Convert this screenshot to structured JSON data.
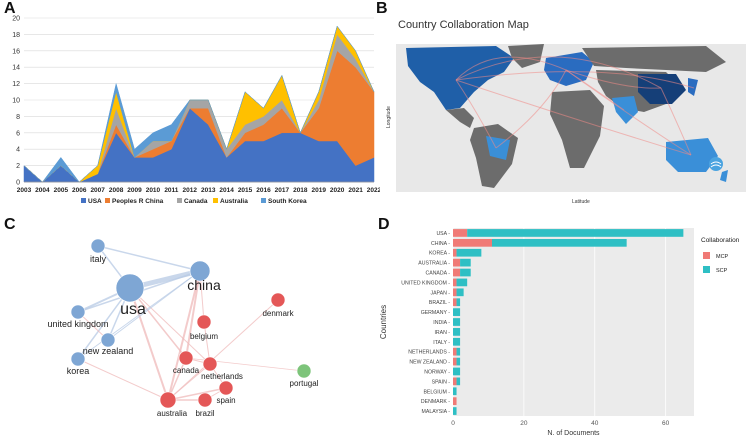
{
  "panels": {
    "a": "A",
    "b": "B",
    "c": "C",
    "d": "D"
  },
  "chart_data": [
    {
      "type": "area",
      "stacked": true,
      "panel": "A",
      "title": "",
      "xlabel": "",
      "ylabel": "",
      "ylim": [
        0,
        20
      ],
      "yticks": [
        0,
        2,
        4,
        6,
        8,
        10,
        12,
        14,
        16,
        18,
        20
      ],
      "grid": true,
      "legend_position": "bottom",
      "x": [
        "2003",
        "2004",
        "2005",
        "2006",
        "2007",
        "2008",
        "2009",
        "2010",
        "2011",
        "2012",
        "2013",
        "2014",
        "2015",
        "2016",
        "2017",
        "2018",
        "2019",
        "2020",
        "2021",
        "2022"
      ],
      "series": [
        {
          "name": "USA",
          "color": "#4472c4",
          "values": [
            2,
            0,
            2,
            0,
            1,
            6,
            3,
            3,
            4,
            9,
            7,
            3,
            5,
            5,
            6,
            6,
            5,
            5,
            2,
            3
          ]
        },
        {
          "name": "Peoples R China",
          "color": "#ed7d31",
          "values": [
            0,
            0,
            0,
            0,
            0,
            1,
            0,
            1,
            1,
            0,
            2,
            0,
            1,
            2,
            3,
            0,
            4,
            11,
            12,
            8
          ]
        },
        {
          "name": "Canada",
          "color": "#a5a5a5",
          "values": [
            0,
            0,
            0,
            0,
            0,
            2,
            0,
            1,
            0,
            1,
            1,
            1,
            1,
            1,
            1,
            0,
            1,
            2,
            1,
            0
          ]
        },
        {
          "name": "Australia",
          "color": "#ffc000",
          "values": [
            0,
            0,
            0,
            0,
            1,
            2,
            0,
            0,
            0,
            0,
            0,
            0,
            4,
            1,
            3,
            0,
            1,
            1,
            1,
            0
          ]
        },
        {
          "name": "South Korea",
          "color": "#5b9bd5",
          "values": [
            0,
            0,
            1,
            0,
            0,
            1,
            1,
            1,
            2,
            0,
            0,
            0,
            0,
            0,
            0,
            0,
            0,
            0,
            0,
            0
          ]
        }
      ]
    },
    {
      "type": "map",
      "panel": "B",
      "title": "Country Collaboration Map",
      "xlabel": "Latitude",
      "ylabel": "Longitude"
    },
    {
      "type": "network",
      "panel": "C",
      "nodes": [
        {
          "name": "usa",
          "cluster": "blue"
        },
        {
          "name": "china",
          "cluster": "blue"
        },
        {
          "name": "italy",
          "cluster": "blue"
        },
        {
          "name": "united kingdom",
          "cluster": "blue"
        },
        {
          "name": "new zealand",
          "cluster": "blue"
        },
        {
          "name": "korea",
          "cluster": "blue"
        },
        {
          "name": "denmark",
          "cluster": "red"
        },
        {
          "name": "belgium",
          "cluster": "red"
        },
        {
          "name": "canada",
          "cluster": "red"
        },
        {
          "name": "netherlands",
          "cluster": "red"
        },
        {
          "name": "spain",
          "cluster": "red"
        },
        {
          "name": "australia",
          "cluster": "red"
        },
        {
          "name": "brazil",
          "cluster": "red"
        },
        {
          "name": "portugal",
          "cluster": "green"
        }
      ]
    },
    {
      "type": "bar",
      "orientation": "horizontal",
      "stacked": true,
      "panel": "D",
      "xlabel": "N. of Documents",
      "ylabel": "Countries",
      "xlim": [
        0,
        68
      ],
      "xticks": [
        0,
        20,
        40,
        60
      ],
      "legend_title": "Collaboration",
      "categories": [
        "USA",
        "CHINA",
        "KOREA",
        "AUSTRALIA",
        "CANADA",
        "UNITED KINGDOM",
        "JAPAN",
        "BRAZIL",
        "GERMANY",
        "INDIA",
        "IRAN",
        "ITALY",
        "NETHERLANDS",
        "NEW ZEALAND",
        "NORWAY",
        "SPAIN",
        "BELGIUM",
        "DENMARK",
        "MALAYSIA"
      ],
      "series": [
        {
          "name": "SCP",
          "color": "#2ebfc4",
          "values": [
            61,
            38,
            7,
            3,
            3,
            3,
            2,
            1,
            2,
            2,
            2,
            2,
            1,
            1,
            2,
            1,
            1,
            0,
            1
          ]
        },
        {
          "name": "MCP",
          "color": "#f07a76",
          "values": [
            4,
            11,
            1,
            2,
            2,
            1,
            1,
            1,
            0,
            0,
            0,
            0,
            1,
            1,
            0,
            1,
            0,
            1,
            0
          ]
        }
      ]
    }
  ]
}
